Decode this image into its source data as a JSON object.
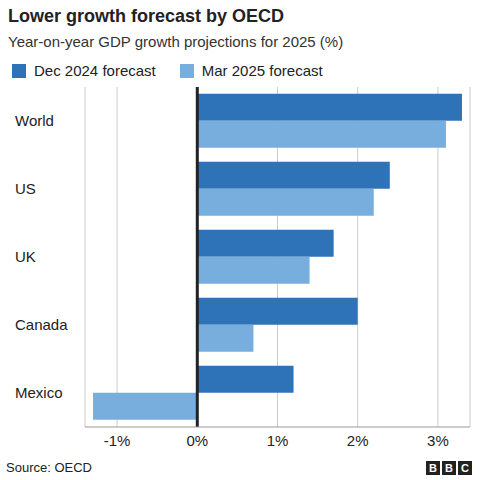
{
  "chart_data": {
    "type": "bar",
    "title": "Lower growth forecast by OECD",
    "subtitle": "Year-on-year GDP growth projections for 2025 (%)",
    "source": "Source: OECD",
    "logo": "BBC",
    "orientation": "horizontal",
    "grid": true,
    "legend": "top-left",
    "categories": [
      "World",
      "US",
      "UK",
      "Canada",
      "Mexico"
    ],
    "series": [
      {
        "name": "Dec 2024 forecast",
        "color": "#2e72b8",
        "values": [
          3.3,
          2.4,
          1.7,
          2.0,
          1.2
        ]
      },
      {
        "name": "Mar 2025 forecast",
        "color": "#77aedd",
        "values": [
          3.1,
          2.2,
          1.4,
          0.7,
          -1.3
        ]
      }
    ],
    "xlim": [
      -1.4,
      3.4
    ],
    "xticks": [
      {
        "value": -1,
        "label": "-1%"
      },
      {
        "value": 0,
        "label": "0%"
      },
      {
        "value": 1,
        "label": "1%"
      },
      {
        "value": 2,
        "label": "2%"
      },
      {
        "value": 3,
        "label": "3%"
      }
    ]
  }
}
